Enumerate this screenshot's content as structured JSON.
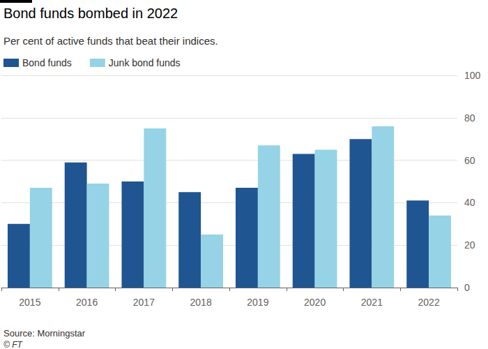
{
  "chart_data": {
    "type": "bar",
    "title": "Bond funds bombed in 2022",
    "subtitle": "Per cent of active funds that beat their indices.",
    "source": "Source: Morningstar",
    "credit": "© FT",
    "categories": [
      "2015",
      "2016",
      "2017",
      "2018",
      "2019",
      "2020",
      "2021",
      "2022"
    ],
    "series": [
      {
        "name": "Bond funds",
        "color": "#1f5591",
        "values": [
          30,
          59,
          50,
          45,
          47,
          63,
          70,
          41
        ]
      },
      {
        "name": "Junk bond funds",
        "color": "#96d3e6",
        "values": [
          47,
          49,
          75,
          25,
          67,
          65,
          76,
          34
        ]
      }
    ],
    "ylim": [
      0,
      100
    ],
    "yticks": [
      0,
      20,
      40,
      60,
      80,
      100
    ],
    "grid": true,
    "legend": "top-left"
  }
}
